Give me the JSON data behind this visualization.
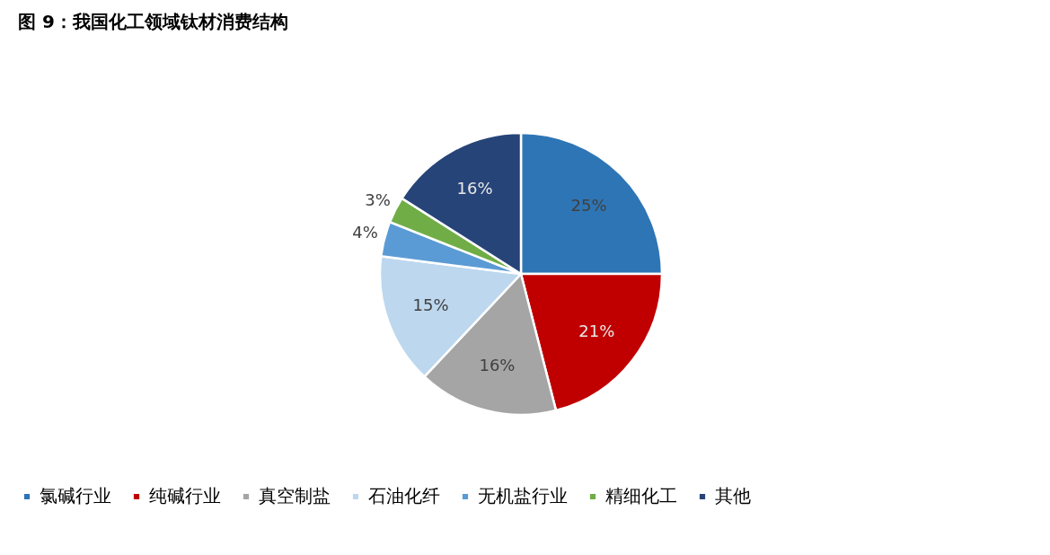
{
  "chart_data": {
    "type": "pie",
    "title": "图 9：我国化工领域钛材消费结构",
    "categories": [
      "氯碱行业",
      "纯碱行业",
      "真空制盐",
      "石油化纤",
      "无机盐行业",
      "精细化工",
      "其他"
    ],
    "values": [
      25,
      21,
      16,
      15,
      4,
      3,
      16
    ],
    "value_labels": [
      "25%",
      "21%",
      "16%",
      "15%",
      "4%",
      "3%",
      "16%"
    ],
    "colors": [
      "#2e75b6",
      "#c00000",
      "#a5a5a5",
      "#bdd7ee",
      "#5b9bd5",
      "#70ad47",
      "#264478"
    ],
    "legend": "bottom"
  }
}
